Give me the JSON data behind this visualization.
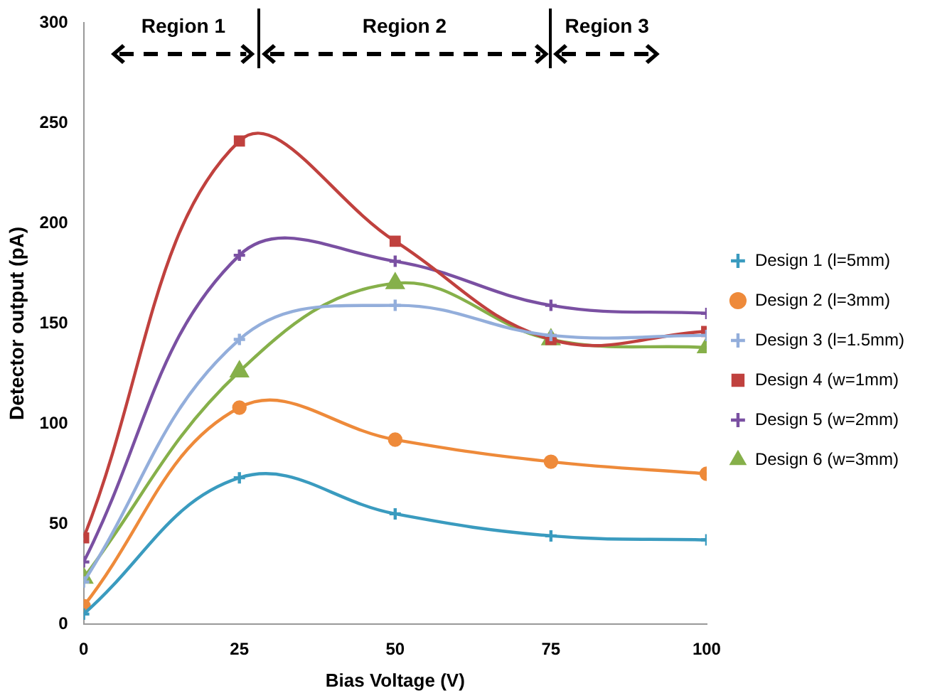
{
  "chart_data": {
    "type": "line",
    "xlabel": "Bias Voltage (V)",
    "ylabel": "Detector output (pA)",
    "x": [
      0,
      25,
      50,
      75,
      100
    ],
    "xlim": [
      0,
      100
    ],
    "xticks": [
      0,
      25,
      50,
      75,
      100
    ],
    "ylim": [
      0,
      300
    ],
    "yticks": [
      0,
      50,
      100,
      150,
      200,
      250,
      300
    ],
    "grid": false,
    "legend": "right",
    "series": [
      {
        "name": "Design 1 (l=5mm)",
        "color": "#3a9bbf",
        "marker": "cross",
        "values": [
          5,
          73,
          55,
          44,
          42
        ]
      },
      {
        "name": "Design 2 (l=3mm)",
        "color": "#ee8a3a",
        "marker": "circle",
        "values": [
          9,
          108,
          92,
          81,
          75
        ]
      },
      {
        "name": "Design 3 (l=1.5mm)",
        "color": "#93aedb",
        "marker": "cross",
        "values": [
          21,
          142,
          159,
          144,
          144
        ]
      },
      {
        "name": "Design 4 (w=1mm)",
        "color": "#c0413e",
        "marker": "square",
        "values": [
          43,
          241,
          191,
          142,
          146
        ]
      },
      {
        "name": "Design 5 (w=2mm)",
        "color": "#7a50a2",
        "marker": "cross",
        "values": [
          31,
          184,
          181,
          159,
          155
        ]
      },
      {
        "name": "Design 6 (w=3mm)",
        "color": "#86b04a",
        "marker": "triangle",
        "values": [
          23,
          126,
          170,
          142,
          138
        ]
      }
    ],
    "annotations": [
      "Region 1",
      "Region 2",
      "Region 3"
    ]
  }
}
